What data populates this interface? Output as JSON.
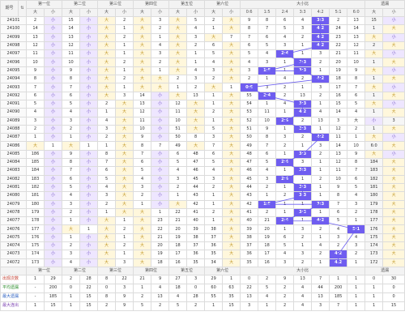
{
  "header": {
    "issue_label": "期号",
    "sort_icon": "sort-arrow-icon",
    "groups": [
      "第一位",
      "第二位",
      "第三位",
      "第四位",
      "第五位",
      "第六位",
      "大小比",
      "遗漏"
    ],
    "sub": [
      "大",
      "小",
      "大",
      "小",
      "大",
      "小",
      "大",
      "小",
      "大",
      "小",
      "大",
      "小",
      "0:6",
      "1:5",
      "2:4",
      "3:3",
      "4:2",
      "5:1",
      "6:0",
      "大",
      "小"
    ]
  },
  "rows": [
    {
      "issue": "24101",
      "v": [
        "2",
        "小",
        "15",
        "小",
        "大",
        "2",
        "大",
        "3",
        "大",
        "5",
        "2",
        "大",
        "9",
        "8",
        "6",
        "4",
        "3:3",
        "2",
        "13",
        "15",
        "小"
      ]
    },
    {
      "issue": "24100",
      "v": [
        "14",
        "小",
        "14",
        "小",
        "大",
        "1",
        "大",
        "2",
        "大",
        "4",
        "1",
        "大",
        "8",
        "7",
        "5",
        "3",
        "4:2",
        "24",
        "14",
        "1",
        "大"
      ]
    },
    {
      "issue": "24099",
      "v": [
        "13",
        "小",
        "13",
        "小",
        "大",
        "2",
        "大",
        "1",
        "大",
        "3",
        "大",
        "7",
        "7",
        "6",
        "4",
        "2",
        "4:2",
        "23",
        "13",
        "大",
        "小"
      ]
    },
    {
      "issue": "24098",
      "v": [
        "12",
        "小",
        "12",
        "小",
        "大",
        "1",
        "大",
        "4",
        "大",
        "2",
        "6",
        "大",
        "6",
        "5",
        "3",
        "1",
        "4:2",
        "22",
        "12",
        "2",
        "大"
      ]
    },
    {
      "issue": "24097",
      "v": [
        "11",
        "小",
        "11",
        "小",
        "大",
        "1",
        "大",
        "3",
        "大",
        "1",
        "5",
        "大",
        "5",
        "4",
        "2:4",
        "1",
        "3",
        "21",
        "11",
        "大",
        "小"
      ]
    },
    {
      "issue": "24096",
      "v": [
        "10",
        "小",
        "10",
        "小",
        "大",
        "2",
        "大",
        "2",
        "大",
        "1",
        "4",
        "大",
        "4",
        "3",
        "1",
        "3:3",
        "2",
        "20",
        "10",
        "1",
        "大"
      ]
    },
    {
      "issue": "24095",
      "v": [
        "9",
        "小",
        "9",
        "小",
        "大",
        "1",
        "大",
        "1",
        "大",
        "4",
        "3",
        "大",
        "3",
        "1:5",
        "1",
        "3:3",
        "1",
        "19",
        "9",
        "大",
        "小"
      ]
    },
    {
      "issue": "24094",
      "v": [
        "8",
        "小",
        "8",
        "小",
        "大",
        "2",
        "大",
        "大",
        "2",
        "3",
        "2",
        "大",
        "2",
        "1",
        "4",
        "2",
        "4:2",
        "18",
        "8",
        "1",
        "大"
      ]
    },
    {
      "issue": "24093",
      "v": [
        "7",
        "小",
        "7",
        "小",
        "大",
        "1",
        "大",
        "大",
        "1",
        "2",
        "大",
        "1",
        "0:6",
        "3",
        "2",
        "1",
        "3",
        "17",
        "7",
        "大",
        "小"
      ]
    },
    {
      "issue": "24092",
      "v": [
        "6",
        "小",
        "6",
        "小",
        "大",
        "3",
        "14",
        "小",
        "大",
        "13",
        "1",
        "大",
        "55",
        "2:4",
        "2",
        "13",
        "2",
        "16",
        "6",
        "1",
        "大"
      ]
    },
    {
      "issue": "24091",
      "v": [
        "5",
        "小",
        "5",
        "小",
        "2",
        "大",
        "13",
        "小",
        "12",
        "大",
        "1",
        "大",
        "54",
        "1",
        "4",
        "3:3",
        "1",
        "15",
        "5",
        "大",
        "小"
      ]
    },
    {
      "issue": "24090",
      "v": [
        "4",
        "小",
        "4",
        "小",
        "1",
        "大",
        "12",
        "小",
        "11",
        "大",
        "2",
        "大",
        "53",
        "11",
        "1",
        "4:2",
        "4",
        "14",
        "4",
        "1",
        "大"
      ]
    },
    {
      "issue": "24089",
      "v": [
        "3",
        "小",
        "3",
        "小",
        "4",
        "大",
        "11",
        "小",
        "10",
        "大",
        "1",
        "大",
        "52",
        "10",
        "2:4",
        "2",
        "13",
        "3",
        "大",
        "小",
        "3"
      ]
    },
    {
      "issue": "24088",
      "v": [
        "2",
        "小",
        "2",
        "小",
        "3",
        "大",
        "10",
        "小",
        "51",
        "大",
        "5",
        "大",
        "51",
        "9",
        "1",
        "3:3",
        "1",
        "12",
        "2",
        "1",
        "大"
      ]
    },
    {
      "issue": "24087",
      "v": [
        "1",
        "小",
        "1",
        "小",
        "2",
        "大",
        "9",
        "小",
        "50",
        "8",
        "3",
        "大",
        "50",
        "8",
        "3",
        "2",
        "4:2",
        "11",
        "1",
        "大",
        "小"
      ]
    },
    {
      "issue": "24086",
      "v": [
        "大",
        "1",
        "大",
        "1",
        "1",
        "大",
        "8",
        "7",
        "49",
        "大",
        "7",
        "大",
        "49",
        "7",
        "2",
        "1",
        "3",
        "14",
        "10",
        "6:0",
        "大"
      ]
    },
    {
      "issue": "24085",
      "v": [
        "186",
        "小",
        "9",
        "小",
        "8",
        "大",
        "7",
        "小",
        "6",
        "48",
        "6",
        "大",
        "48",
        "6",
        "1",
        "3:3",
        "2",
        "13",
        "9",
        "大",
        "小"
      ]
    },
    {
      "issue": "24084",
      "v": [
        "185",
        "小",
        "8",
        "小",
        "7",
        "大",
        "6",
        "小",
        "5",
        "47",
        "5",
        "大",
        "47",
        "5",
        "2:4",
        "3",
        "1",
        "12",
        "8",
        "184",
        "大"
      ]
    },
    {
      "issue": "24083",
      "v": [
        "184",
        "小",
        "7",
        "小",
        "6",
        "大",
        "5",
        "小",
        "4",
        "46",
        "4",
        "大",
        "46",
        "4",
        "1",
        "3:3",
        "1",
        "11",
        "7",
        "183",
        "大"
      ]
    },
    {
      "issue": "24082",
      "v": [
        "183",
        "小",
        "6",
        "小",
        "5",
        "大",
        "4",
        "小",
        "3",
        "45",
        "3",
        "大",
        "45",
        "3",
        "2:4",
        "1",
        "2",
        "10",
        "6",
        "182",
        "大"
      ]
    },
    {
      "issue": "24081",
      "v": [
        "182",
        "小",
        "5",
        "小",
        "4",
        "大",
        "3",
        "小",
        "2",
        "44",
        "2",
        "大",
        "44",
        "2",
        "1",
        "3:3",
        "1",
        "9",
        "5",
        "181",
        "大"
      ]
    },
    {
      "issue": "24080",
      "v": [
        "181",
        "小",
        "4",
        "小",
        "3",
        "大",
        "2",
        "小",
        "1",
        "43",
        "1",
        "大",
        "43",
        "1",
        "2",
        "3:3",
        "1",
        "8",
        "4",
        "180",
        "大"
      ]
    },
    {
      "issue": "24079",
      "v": [
        "180",
        "小",
        "3",
        "小",
        "2",
        "大",
        "1",
        "小",
        "大",
        "42",
        "1",
        "大",
        "42",
        "1:5",
        "1",
        "1",
        "3:3",
        "7",
        "3",
        "179",
        "大"
      ]
    },
    {
      "issue": "24078",
      "v": [
        "179",
        "小",
        "2",
        "小",
        "1",
        "大",
        "大",
        "1",
        "22",
        "41",
        "2",
        "大",
        "41",
        "2",
        "1",
        "3:3",
        "1",
        "6",
        "2",
        "178",
        "大"
      ]
    },
    {
      "issue": "24077",
      "v": [
        "178",
        "小",
        "1",
        "小",
        "大",
        "1",
        "大",
        "23",
        "21",
        "40",
        "1",
        "大",
        "40",
        "21",
        "2:4",
        "1",
        "4:2",
        "5",
        "1",
        "177",
        "大"
      ]
    },
    {
      "issue": "24076",
      "v": [
        "177",
        "小",
        "大",
        "1",
        "大",
        "2",
        "大",
        "22",
        "20",
        "39",
        "38",
        "大",
        "39",
        "20",
        "1",
        "3",
        "2",
        "4",
        "5:1",
        "176",
        "大"
      ]
    },
    {
      "issue": "24075",
      "v": [
        "176",
        "小",
        "1",
        "小",
        "大",
        "1",
        "大",
        "21",
        "19",
        "38",
        "37",
        "大",
        "38",
        "19",
        "6",
        "2",
        "1",
        "3",
        "4",
        "175",
        "大"
      ]
    },
    {
      "issue": "24074",
      "v": [
        "175",
        "小",
        "2",
        "小",
        "大",
        "2",
        "大",
        "20",
        "18",
        "37",
        "36",
        "大",
        "37",
        "18",
        "5",
        "1",
        "4",
        "2",
        "3",
        "174",
        "大"
      ]
    },
    {
      "issue": "24073",
      "v": [
        "174",
        "小",
        "3",
        "小",
        "大",
        "1",
        "大",
        "19",
        "17",
        "36",
        "35",
        "大",
        "36",
        "17",
        "4",
        "3",
        "2",
        "4:2",
        "2",
        "173",
        "大"
      ]
    },
    {
      "issue": "24072",
      "v": [
        "173",
        "小",
        "4",
        "小",
        "大",
        "3",
        "大",
        "18",
        "16",
        "35",
        "34",
        "大",
        "35",
        "16",
        "3",
        "2",
        "1",
        "4:2",
        "1",
        "172",
        "大"
      ]
    }
  ],
  "footer": [
    {
      "label": "出现次数",
      "v": [
        "1",
        "29",
        "2",
        "28",
        "8",
        "22",
        "21",
        "9",
        "27",
        "3",
        "29",
        "1",
        "0",
        "2",
        "9",
        "13",
        "7",
        "1",
        "1",
        "0",
        "30"
      ]
    },
    {
      "label": "平均遗漏",
      "v": [
        "-",
        "200",
        "0",
        "22",
        "0",
        "3",
        "1",
        "4",
        "18",
        "0",
        "60",
        "63",
        "22",
        "5",
        "2",
        "4",
        "44",
        "200",
        "1",
        "1",
        "0"
      ]
    },
    {
      "label": "最大遗漏",
      "v": [
        "-",
        "185",
        "1",
        "15",
        "8",
        "9",
        "2",
        "13",
        "4",
        "28",
        "55",
        "35",
        "13",
        "4",
        "2",
        "4",
        "13",
        "185",
        "1",
        "1",
        "0"
      ]
    },
    {
      "label": "最大连出",
      "v": [
        "1",
        "15",
        "1",
        "15",
        "2",
        "9",
        "5",
        "2",
        "5",
        "2",
        "1",
        "15",
        "3",
        "1",
        "2",
        "4",
        "3",
        "7",
        "1",
        "1",
        "15"
      ]
    }
  ],
  "colors": {
    "big": "#fff7dc",
    "small": "#eee6ff",
    "highlight": "#6f5df0",
    "line": "#6a5df0"
  }
}
